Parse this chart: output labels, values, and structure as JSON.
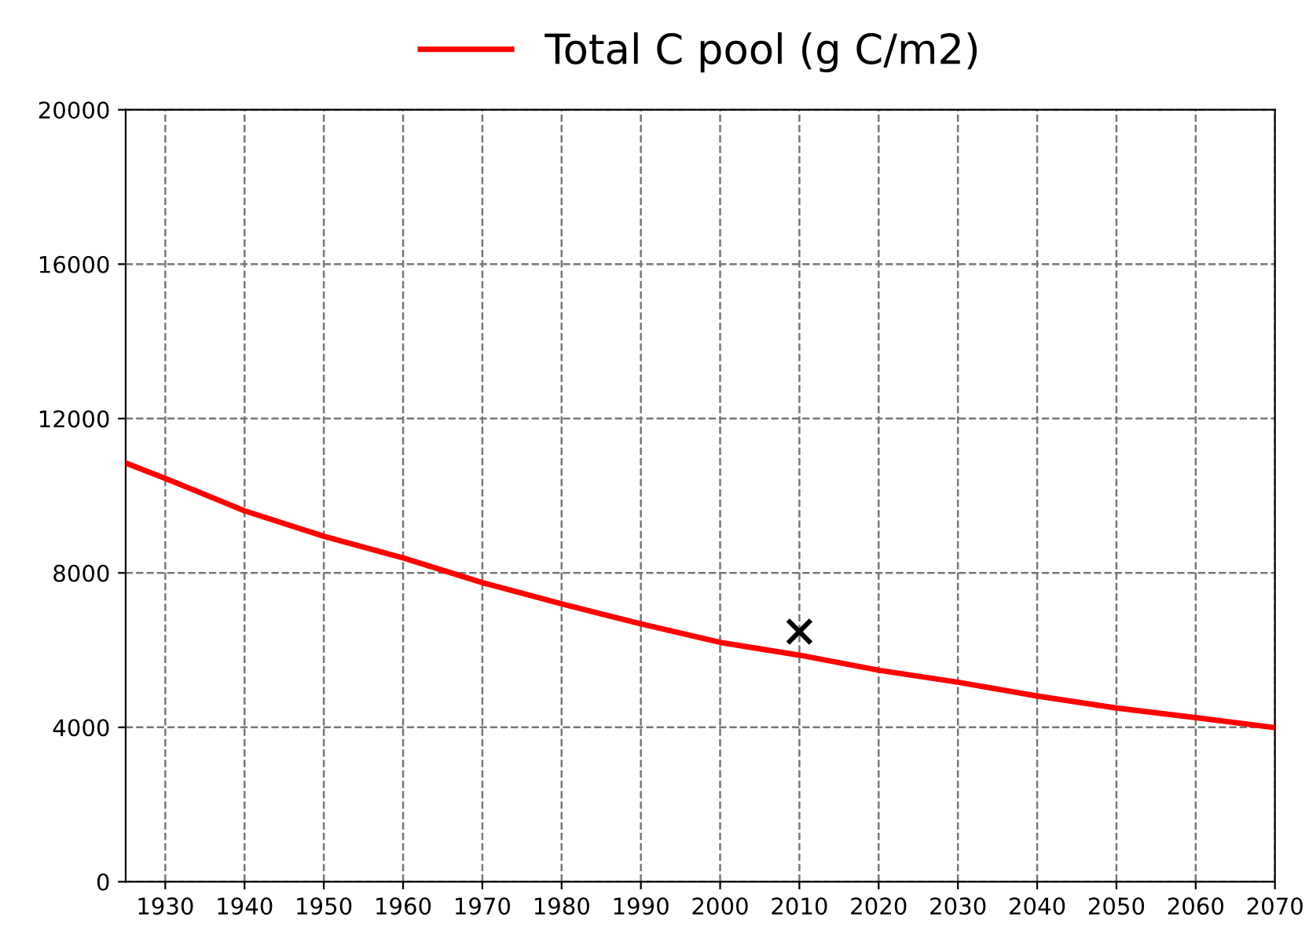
{
  "chart_data": {
    "type": "line",
    "xlim": [
      1925,
      2070
    ],
    "xticks": [
      1930,
      1940,
      1950,
      1960,
      1970,
      1980,
      1990,
      2000,
      2010,
      2020,
      2030,
      2040,
      2050,
      2060,
      2070
    ],
    "ylim": [
      0,
      20000
    ],
    "yticks": [
      0,
      4000,
      8000,
      12000,
      16000,
      20000
    ],
    "grid": true,
    "legend": "top",
    "series": [
      {
        "name": "Total C pool (g C/m2)",
        "color": "#ff0000",
        "marker": "none",
        "x": [
          1925,
          1930,
          1940,
          1950,
          1960,
          1970,
          1980,
          1990,
          2000,
          2010,
          2020,
          2030,
          2040,
          2050,
          2060,
          2070
        ],
        "values": [
          10850,
          10450,
          9610,
          8950,
          8390,
          7750,
          7200,
          6680,
          6200,
          5870,
          5480,
          5170,
          4810,
          4500,
          4250,
          3990
        ]
      },
      {
        "color": "#000000",
        "type": "scatter",
        "marker": "cross",
        "x": [
          2010
        ],
        "values": [
          6480
        ]
      }
    ]
  }
}
